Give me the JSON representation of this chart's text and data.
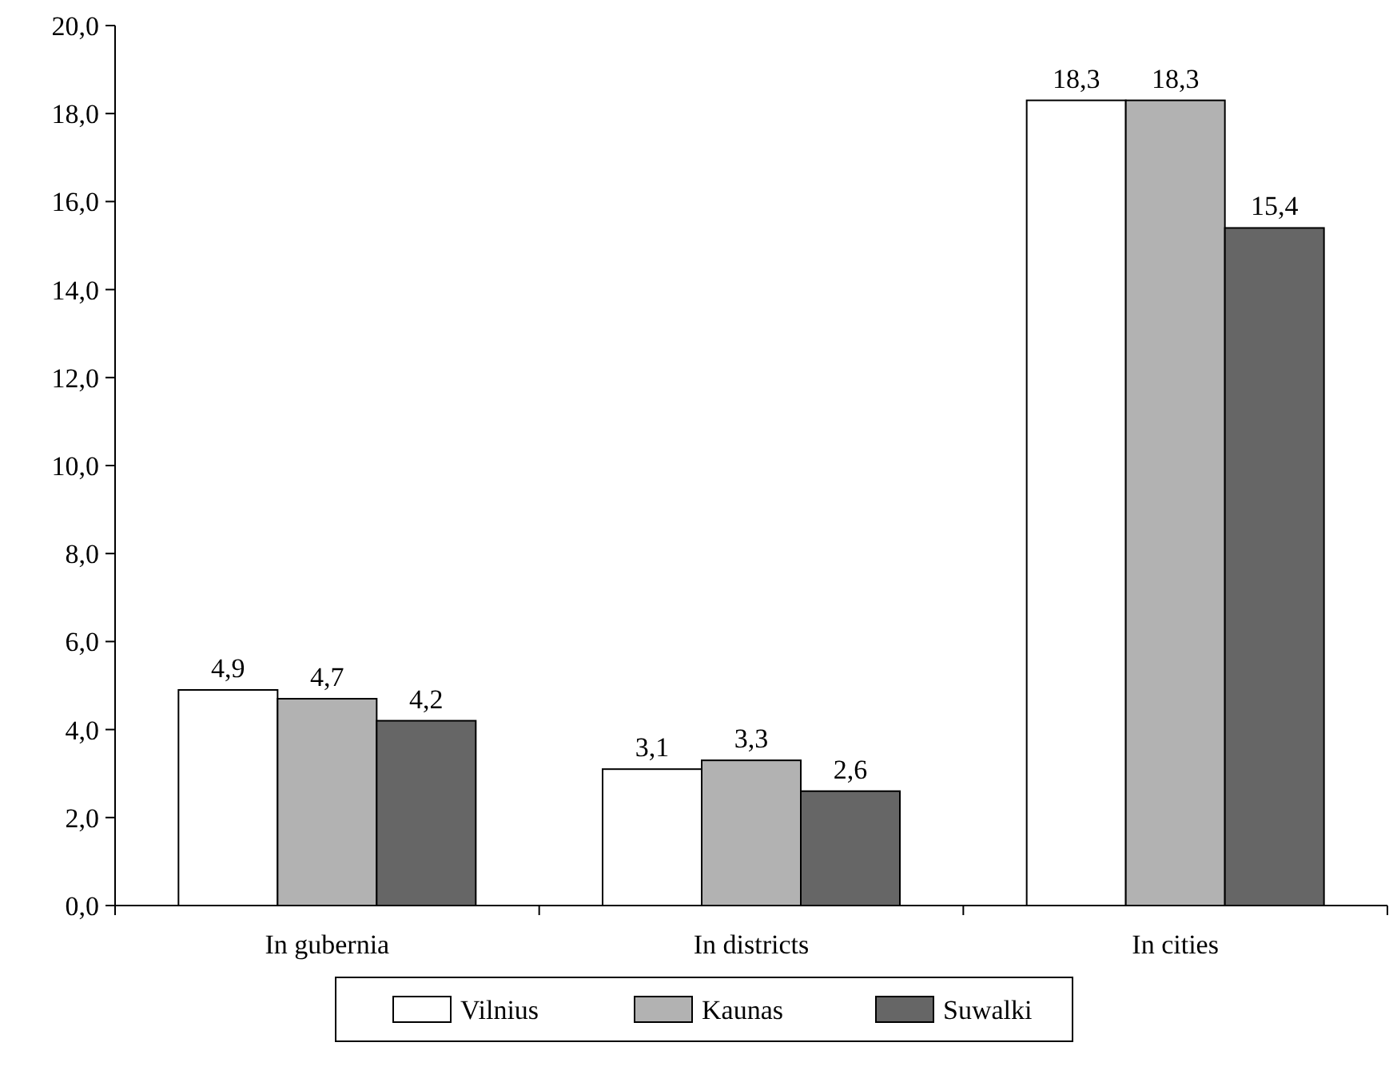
{
  "chart_data": {
    "type": "bar",
    "categories": [
      "In gubernia",
      "In districts",
      "In cities"
    ],
    "series": [
      {
        "name": "Vilnius",
        "color": "#ffffff",
        "values": [
          4.9,
          3.1,
          18.3
        ],
        "value_labels": [
          "4,9",
          "3,1",
          "18,3"
        ]
      },
      {
        "name": "Kaunas",
        "color": "#b2b2b2",
        "values": [
          4.7,
          3.3,
          18.3
        ],
        "value_labels": [
          "4,7",
          "3,3",
          "18,3"
        ]
      },
      {
        "name": "Suwalki",
        "color": "#666666",
        "values": [
          4.2,
          2.6,
          15.4
        ],
        "value_labels": [
          "4,2",
          "2,6",
          "15,4"
        ]
      }
    ],
    "ylim": [
      0,
      20
    ],
    "yticks": [
      {
        "value": 0,
        "label": "0,0"
      },
      {
        "value": 2,
        "label": "2,0"
      },
      {
        "value": 4,
        "label": "4,0"
      },
      {
        "value": 6,
        "label": "6,0"
      },
      {
        "value": 8,
        "label": "8,0"
      },
      {
        "value": 10,
        "label": "10,0"
      },
      {
        "value": 12,
        "label": "12,0"
      },
      {
        "value": 14,
        "label": "14,0"
      },
      {
        "value": 16,
        "label": "16,0"
      },
      {
        "value": 18,
        "label": "18,0"
      },
      {
        "value": 20,
        "label": "20,0"
      }
    ],
    "grid": false,
    "legend": "bottom"
  }
}
